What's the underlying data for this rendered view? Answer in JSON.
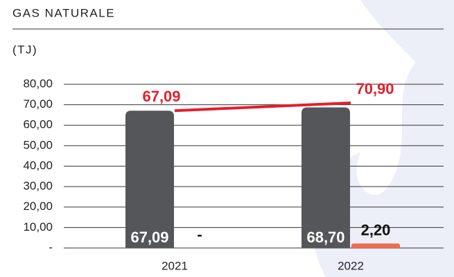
{
  "title": "GAS NATURALE",
  "unit": "(TJ)",
  "chart_data": {
    "type": "bar-line",
    "categories": [
      "2021",
      "2022"
    ],
    "ylim": [
      0,
      80
    ],
    "yticks": [
      {
        "value": 0,
        "label": "-"
      },
      {
        "value": 10,
        "label": "10,00"
      },
      {
        "value": 20,
        "label": "20,00"
      },
      {
        "value": 30,
        "label": "30,00"
      },
      {
        "value": 40,
        "label": "40,00"
      },
      {
        "value": 50,
        "label": "50,00"
      },
      {
        "value": 60,
        "label": "60,00"
      },
      {
        "value": 70,
        "label": "70,00"
      },
      {
        "value": 80,
        "label": "80,00"
      }
    ],
    "grid": true,
    "series": [
      {
        "type": "bar",
        "color": "#55565a",
        "values": [
          67.09,
          68.7
        ],
        "value_labels": [
          "67,09",
          "68,70"
        ]
      },
      {
        "type": "bar",
        "color": "#ee6b4d",
        "values": [
          0,
          2.2
        ],
        "value_labels": [
          "-",
          "2,20"
        ]
      },
      {
        "type": "line",
        "color": "#e2202b",
        "values": [
          67.09,
          70.9
        ],
        "value_labels": [
          "67,09",
          "70,90"
        ]
      }
    ]
  }
}
